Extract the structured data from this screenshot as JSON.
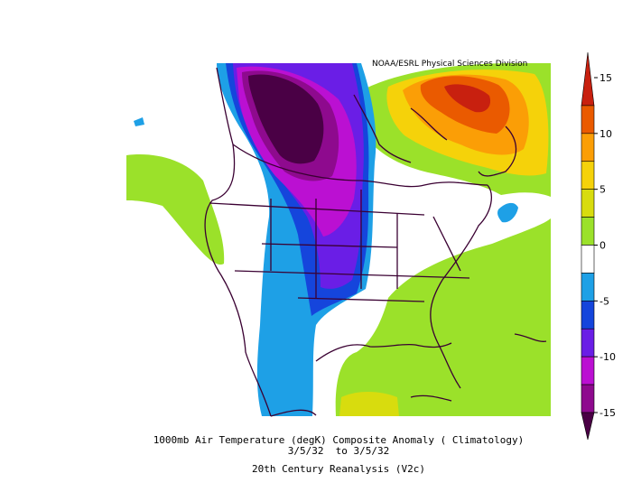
{
  "credit": "NOAA/ESRL Physical Sciences Division",
  "caption": {
    "line1": "1000mb Air Temperature (degK) Composite Anomaly ( Climatology)",
    "line2": "3/5/32  to 3/5/32",
    "line3": "20th Century Reanalysis (V2c)"
  },
  "colorbar": {
    "ticks": [
      "15",
      "10",
      "5",
      "0",
      "-5",
      "-10",
      "-15"
    ],
    "bands": [
      {
        "from": 12.5,
        "to": 15,
        "color": "#c8200f"
      },
      {
        "from": 10,
        "to": 12.5,
        "color": "#ea5a00"
      },
      {
        "from": 7.5,
        "to": 10,
        "color": "#fb9e06"
      },
      {
        "from": 5,
        "to": 7.5,
        "color": "#f5d20a"
      },
      {
        "from": 2.5,
        "to": 5,
        "color": "#d8dc0e"
      },
      {
        "from": 0,
        "to": 2.5,
        "color": "#9be12a"
      },
      {
        "from": -2.5,
        "to": 0,
        "color": "#ffffff"
      },
      {
        "from": -5,
        "to": -2.5,
        "color": "#1ea0e6"
      },
      {
        "from": -7.5,
        "to": -5,
        "color": "#1545dc"
      },
      {
        "from": -10,
        "to": -7.5,
        "color": "#6a1ee6"
      },
      {
        "from": -12.5,
        "to": -10,
        "color": "#bb10d2"
      },
      {
        "from": -15,
        "to": -12.5,
        "color": "#8e0a8e"
      },
      {
        "from": -17.5,
        "to": -15,
        "color": "#4a0045"
      }
    ]
  }
}
